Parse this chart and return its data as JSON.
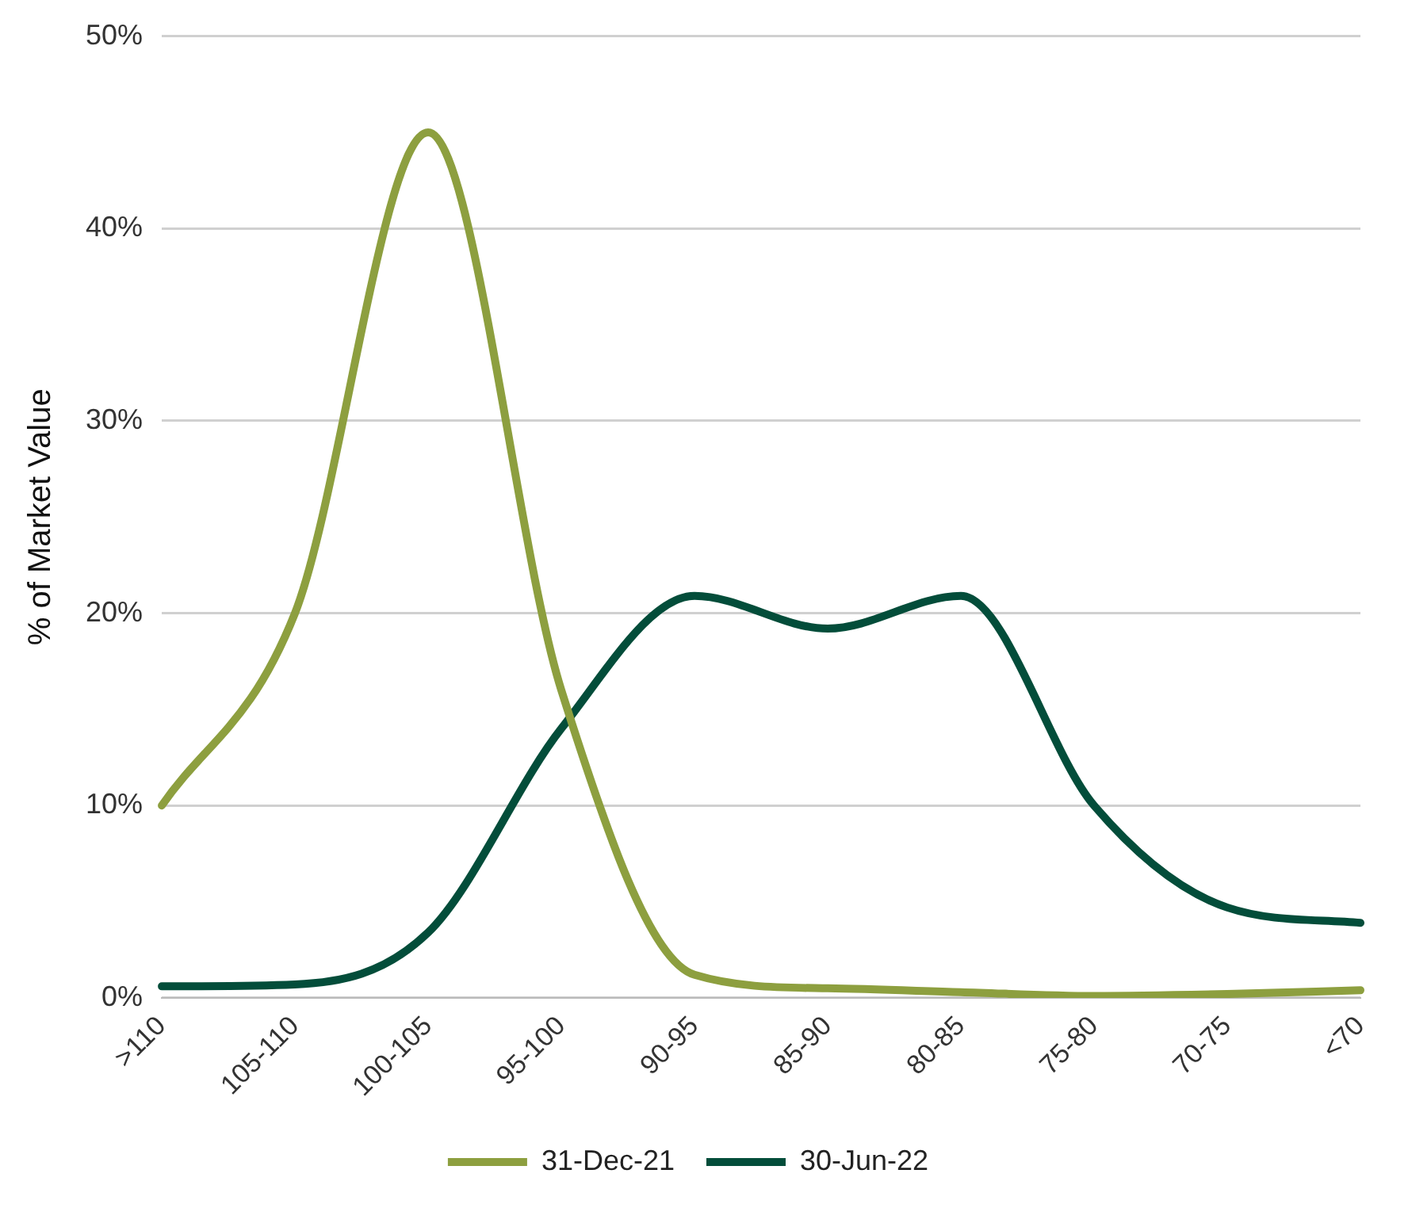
{
  "chart_data": {
    "type": "line",
    "ylabel": "% of Market Value",
    "categories": [
      ">110",
      "105-110",
      "100-105",
      "95-100",
      "90-95",
      "85-90",
      "80-85",
      "75-80",
      "70-75",
      "<70"
    ],
    "series": [
      {
        "name": "31-Dec-21",
        "color": "#8d9f3f",
        "values": [
          10,
          20,
          45,
          16,
          1.2,
          0.5,
          0.3,
          0.1,
          0.2,
          0.4
        ]
      },
      {
        "name": "30-Jun-22",
        "color": "#034d3a",
        "values": [
          0.6,
          0.7,
          3.4,
          14,
          20.9,
          19.2,
          20.9,
          10,
          4.7,
          3.9
        ]
      }
    ],
    "ylim": [
      0,
      50
    ],
    "yticks": [
      {
        "value": 0,
        "label": "0%"
      },
      {
        "value": 10,
        "label": "10%"
      },
      {
        "value": 20,
        "label": "20%"
      },
      {
        "value": 30,
        "label": "30%"
      },
      {
        "value": 40,
        "label": "40%"
      },
      {
        "value": 50,
        "label": "50%"
      }
    ],
    "grid": "y",
    "legend": "bottom",
    "marker": "none",
    "line_style": "solid"
  }
}
